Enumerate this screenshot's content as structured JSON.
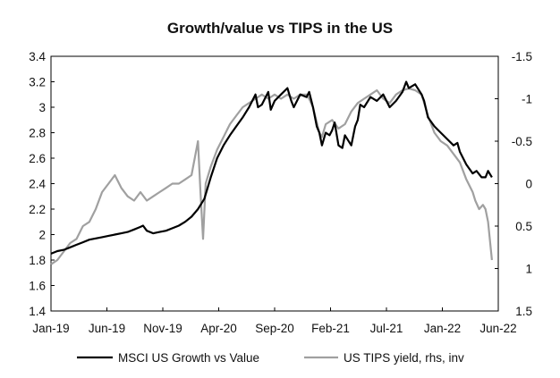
{
  "chart_data": {
    "type": "line",
    "title": "Growth/value vs TIPS in the US",
    "x_ticks": [
      "Jan-19",
      "Jun-19",
      "Nov-19",
      "Apr-20",
      "Sep-20",
      "Feb-21",
      "Jul-21",
      "Jan-22",
      "Jun-22"
    ],
    "y_left": {
      "range": [
        1.4,
        3.4
      ],
      "ticks": [
        "1.4",
        "1.6",
        "1.8",
        "2",
        "2.2",
        "2.4",
        "2.6",
        "2.8",
        "3",
        "3.2",
        "3.4"
      ]
    },
    "y_right": {
      "range": [
        -1.5,
        1.5
      ],
      "inverted": true,
      "ticks": [
        "-1.5",
        "-1",
        "-0.5",
        "0",
        "0.5",
        "1",
        "1.5"
      ]
    },
    "x_range": [
      2019.0,
      2022.5
    ],
    "series": [
      {
        "name": "MSCI US Growth vs Value",
        "axis": "left",
        "color": "#000000",
        "points": [
          [
            2019.0,
            1.85
          ],
          [
            2019.05,
            1.87
          ],
          [
            2019.1,
            1.88
          ],
          [
            2019.15,
            1.9
          ],
          [
            2019.2,
            1.92
          ],
          [
            2019.25,
            1.94
          ],
          [
            2019.3,
            1.96
          ],
          [
            2019.35,
            1.97
          ],
          [
            2019.4,
            1.98
          ],
          [
            2019.45,
            1.99
          ],
          [
            2019.5,
            2.0
          ],
          [
            2019.55,
            2.01
          ],
          [
            2019.6,
            2.02
          ],
          [
            2019.65,
            2.04
          ],
          [
            2019.7,
            2.06
          ],
          [
            2019.72,
            2.07
          ],
          [
            2019.75,
            2.03
          ],
          [
            2019.8,
            2.01
          ],
          [
            2019.85,
            2.02
          ],
          [
            2019.9,
            2.03
          ],
          [
            2019.95,
            2.05
          ],
          [
            2020.0,
            2.07
          ],
          [
            2020.05,
            2.1
          ],
          [
            2020.1,
            2.14
          ],
          [
            2020.15,
            2.2
          ],
          [
            2020.2,
            2.28
          ],
          [
            2020.25,
            2.45
          ],
          [
            2020.3,
            2.6
          ],
          [
            2020.35,
            2.7
          ],
          [
            2020.4,
            2.78
          ],
          [
            2020.45,
            2.85
          ],
          [
            2020.5,
            2.92
          ],
          [
            2020.55,
            3.0
          ],
          [
            2020.6,
            3.1
          ],
          [
            2020.62,
            3.0
          ],
          [
            2020.65,
            3.02
          ],
          [
            2020.7,
            3.12
          ],
          [
            2020.72,
            2.98
          ],
          [
            2020.75,
            3.05
          ],
          [
            2020.8,
            3.1
          ],
          [
            2020.85,
            3.15
          ],
          [
            2020.88,
            3.05
          ],
          [
            2020.9,
            3.0
          ],
          [
            2020.95,
            3.1
          ],
          [
            2021.0,
            3.08
          ],
          [
            2021.02,
            3.12
          ],
          [
            2021.05,
            3.0
          ],
          [
            2021.08,
            2.85
          ],
          [
            2021.1,
            2.8
          ],
          [
            2021.12,
            2.7
          ],
          [
            2021.15,
            2.8
          ],
          [
            2021.18,
            2.78
          ],
          [
            2021.2,
            2.82
          ],
          [
            2021.22,
            2.88
          ],
          [
            2021.25,
            2.7
          ],
          [
            2021.28,
            2.68
          ],
          [
            2021.3,
            2.78
          ],
          [
            2021.35,
            2.7
          ],
          [
            2021.38,
            2.85
          ],
          [
            2021.4,
            2.9
          ],
          [
            2021.42,
            3.02
          ],
          [
            2021.45,
            3.0
          ],
          [
            2021.5,
            3.08
          ],
          [
            2021.55,
            3.05
          ],
          [
            2021.6,
            3.1
          ],
          [
            2021.65,
            3.0
          ],
          [
            2021.7,
            3.05
          ],
          [
            2021.75,
            3.12
          ],
          [
            2021.78,
            3.2
          ],
          [
            2021.8,
            3.15
          ],
          [
            2021.85,
            3.18
          ],
          [
            2021.9,
            3.1
          ],
          [
            2021.92,
            3.05
          ],
          [
            2021.95,
            2.92
          ],
          [
            2022.0,
            2.85
          ],
          [
            2022.05,
            2.8
          ],
          [
            2022.1,
            2.75
          ],
          [
            2022.15,
            2.7
          ],
          [
            2022.18,
            2.72
          ],
          [
            2022.2,
            2.65
          ],
          [
            2022.25,
            2.55
          ],
          [
            2022.3,
            2.48
          ],
          [
            2022.33,
            2.5
          ],
          [
            2022.37,
            2.45
          ],
          [
            2022.4,
            2.45
          ],
          [
            2022.42,
            2.5
          ],
          [
            2022.45,
            2.45
          ]
        ]
      },
      {
        "name": "US TIPS yield, rhs, inv",
        "axis": "right",
        "color": "#a0a0a0",
        "points": [
          [
            2019.0,
            0.95
          ],
          [
            2019.05,
            0.9
          ],
          [
            2019.1,
            0.8
          ],
          [
            2019.15,
            0.7
          ],
          [
            2019.2,
            0.65
          ],
          [
            2019.25,
            0.5
          ],
          [
            2019.3,
            0.45
          ],
          [
            2019.35,
            0.3
          ],
          [
            2019.4,
            0.1
          ],
          [
            2019.45,
            0.0
          ],
          [
            2019.5,
            -0.1
          ],
          [
            2019.55,
            0.05
          ],
          [
            2019.6,
            0.15
          ],
          [
            2019.65,
            0.2
          ],
          [
            2019.7,
            0.1
          ],
          [
            2019.75,
            0.2
          ],
          [
            2019.8,
            0.15
          ],
          [
            2019.85,
            0.1
          ],
          [
            2019.9,
            0.05
          ],
          [
            2019.95,
            0.0
          ],
          [
            2020.0,
            0.0
          ],
          [
            2020.05,
            -0.05
          ],
          [
            2020.1,
            -0.1
          ],
          [
            2020.15,
            -0.5
          ],
          [
            2020.17,
            0.1
          ],
          [
            2020.19,
            0.65
          ],
          [
            2020.21,
            0.0
          ],
          [
            2020.25,
            -0.2
          ],
          [
            2020.3,
            -0.4
          ],
          [
            2020.35,
            -0.55
          ],
          [
            2020.4,
            -0.7
          ],
          [
            2020.45,
            -0.8
          ],
          [
            2020.5,
            -0.9
          ],
          [
            2020.55,
            -0.95
          ],
          [
            2020.6,
            -1.0
          ],
          [
            2020.65,
            -1.05
          ],
          [
            2020.7,
            -1.0
          ],
          [
            2020.75,
            -1.05
          ],
          [
            2020.8,
            -1.0
          ],
          [
            2020.85,
            -1.05
          ],
          [
            2020.9,
            -1.0
          ],
          [
            2020.95,
            -1.05
          ],
          [
            2021.0,
            -1.05
          ],
          [
            2021.02,
            -1.0
          ],
          [
            2021.05,
            -0.9
          ],
          [
            2021.1,
            -0.6
          ],
          [
            2021.12,
            -0.55
          ],
          [
            2021.15,
            -0.7
          ],
          [
            2021.2,
            -0.75
          ],
          [
            2021.25,
            -0.65
          ],
          [
            2021.3,
            -0.7
          ],
          [
            2021.35,
            -0.85
          ],
          [
            2021.4,
            -0.95
          ],
          [
            2021.45,
            -1.0
          ],
          [
            2021.5,
            -1.05
          ],
          [
            2021.55,
            -1.1
          ],
          [
            2021.6,
            -1.0
          ],
          [
            2021.65,
            -0.95
          ],
          [
            2021.7,
            -1.05
          ],
          [
            2021.75,
            -1.1
          ],
          [
            2021.8,
            -1.12
          ],
          [
            2021.85,
            -1.1
          ],
          [
            2021.9,
            -1.05
          ],
          [
            2021.95,
            -0.8
          ],
          [
            2022.0,
            -0.6
          ],
          [
            2022.05,
            -0.5
          ],
          [
            2022.1,
            -0.45
          ],
          [
            2022.15,
            -0.35
          ],
          [
            2022.2,
            -0.25
          ],
          [
            2022.25,
            -0.05
          ],
          [
            2022.3,
            0.1
          ],
          [
            2022.32,
            0.2
          ],
          [
            2022.35,
            0.3
          ],
          [
            2022.38,
            0.25
          ],
          [
            2022.4,
            0.3
          ],
          [
            2022.42,
            0.45
          ],
          [
            2022.45,
            0.9
          ]
        ]
      }
    ]
  }
}
